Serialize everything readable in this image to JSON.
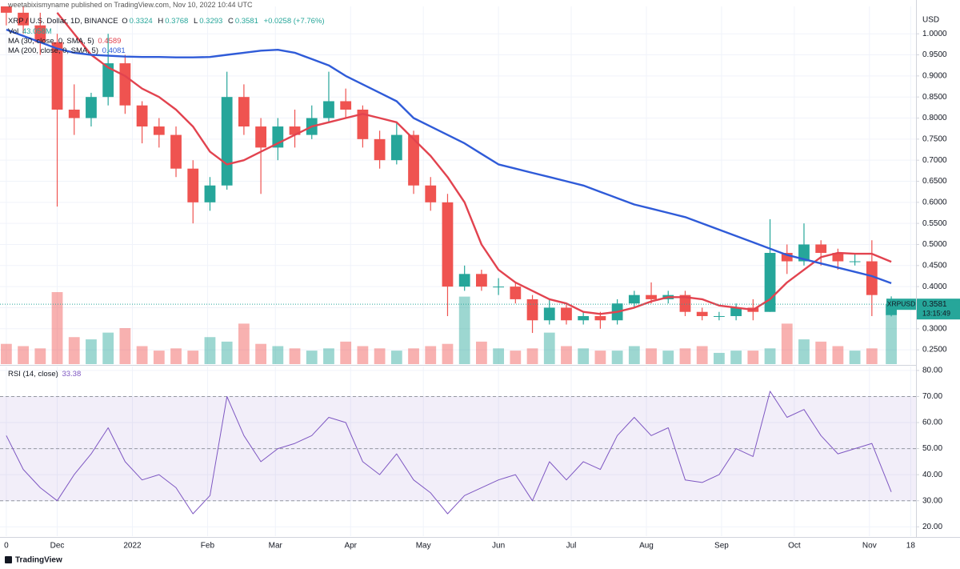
{
  "header": "weetabixismyname published on TradingView.com, Nov 10, 2022 10:44 UTC",
  "footer": "TradingView",
  "chart_data": [
    {
      "type": "candlestick",
      "title": "XRP / U.S. Dollar, 1D, BINANCE",
      "ohlc": [
        {
          "label": "O",
          "value": "0.3324"
        },
        {
          "label": "H",
          "value": "0.3768"
        },
        {
          "label": "L",
          "value": "0.3293"
        },
        {
          "label": "C",
          "value": "0.3581"
        }
      ],
      "change": "+0.0258 (+7.76%)",
      "volume_label": "Vol",
      "volume_value": "43.058M",
      "yaxis_label": "USD",
      "up_color": "#26a69a",
      "down_color": "#ef5350",
      "x": [
        0,
        7,
        14,
        21,
        28,
        35,
        42,
        49,
        56,
        63,
        70,
        77,
        84,
        91,
        98,
        105,
        112,
        119,
        126,
        133,
        140,
        147,
        154,
        161,
        168,
        175,
        182,
        189,
        196,
        203,
        210,
        217,
        224,
        231,
        238,
        245,
        252,
        259,
        266,
        273,
        280,
        287,
        294,
        301,
        308,
        315,
        322,
        329,
        336,
        343,
        350,
        357,
        365
      ],
      "open": [
        1.1,
        1.05,
        1.02,
        0.98,
        0.82,
        0.8,
        0.85,
        0.93,
        0.83,
        0.78,
        0.76,
        0.68,
        0.6,
        0.64,
        0.85,
        0.78,
        0.73,
        0.78,
        0.76,
        0.8,
        0.84,
        0.82,
        0.75,
        0.7,
        0.76,
        0.64,
        0.6,
        0.4,
        0.43,
        0.4,
        0.4,
        0.37,
        0.32,
        0.35,
        0.32,
        0.33,
        0.32,
        0.36,
        0.38,
        0.37,
        0.38,
        0.34,
        0.33,
        0.33,
        0.35,
        0.34,
        0.48,
        0.46,
        0.5,
        0.48,
        0.46,
        0.46,
        0.3324
      ],
      "high": [
        1.12,
        1.08,
        1.05,
        1.0,
        0.88,
        0.86,
        1.0,
        0.95,
        0.84,
        0.8,
        0.78,
        0.7,
        0.66,
        0.91,
        0.88,
        0.8,
        0.8,
        0.82,
        0.83,
        0.91,
        0.87,
        0.83,
        0.77,
        0.79,
        0.77,
        0.66,
        0.62,
        0.45,
        0.44,
        0.42,
        0.41,
        0.38,
        0.37,
        0.36,
        0.34,
        0.34,
        0.37,
        0.39,
        0.41,
        0.39,
        0.39,
        0.35,
        0.34,
        0.36,
        0.37,
        0.56,
        0.5,
        0.55,
        0.51,
        0.49,
        0.48,
        0.51,
        0.3768
      ],
      "low": [
        1.02,
        1.0,
        0.95,
        0.59,
        0.76,
        0.78,
        0.83,
        0.81,
        0.74,
        0.73,
        0.66,
        0.55,
        0.58,
        0.63,
        0.76,
        0.62,
        0.7,
        0.73,
        0.75,
        0.79,
        0.8,
        0.73,
        0.68,
        0.69,
        0.62,
        0.58,
        0.33,
        0.39,
        0.39,
        0.38,
        0.36,
        0.29,
        0.31,
        0.31,
        0.31,
        0.3,
        0.31,
        0.35,
        0.36,
        0.36,
        0.33,
        0.32,
        0.32,
        0.32,
        0.32,
        0.34,
        0.43,
        0.45,
        0.45,
        0.44,
        0.45,
        0.33,
        0.3293
      ],
      "close": [
        1.05,
        1.02,
        0.98,
        0.82,
        0.8,
        0.85,
        0.93,
        0.83,
        0.78,
        0.76,
        0.68,
        0.6,
        0.64,
        0.85,
        0.78,
        0.73,
        0.78,
        0.76,
        0.8,
        0.84,
        0.82,
        0.75,
        0.7,
        0.76,
        0.64,
        0.6,
        0.4,
        0.43,
        0.4,
        0.4,
        0.37,
        0.32,
        0.35,
        0.32,
        0.33,
        0.32,
        0.36,
        0.38,
        0.37,
        0.38,
        0.34,
        0.33,
        0.33,
        0.35,
        0.34,
        0.48,
        0.46,
        0.5,
        0.48,
        0.46,
        0.46,
        0.38,
        0.3581
      ],
      "volume": [
        45,
        40,
        35,
        160,
        60,
        55,
        70,
        80,
        40,
        30,
        35,
        30,
        60,
        50,
        90,
        45,
        40,
        35,
        30,
        35,
        50,
        40,
        35,
        30,
        35,
        40,
        45,
        150,
        50,
        35,
        30,
        35,
        70,
        40,
        35,
        30,
        30,
        40,
        35,
        30,
        35,
        40,
        25,
        30,
        30,
        35,
        90,
        55,
        50,
        40,
        30,
        35,
        110
      ],
      "series": [
        {
          "name": "MA (30, close, 0, SMA, 5)",
          "value_label": "0.4589",
          "color": "#e2434f",
          "values": [
            null,
            null,
            null,
            1.05,
            1.0,
            0.95,
            0.92,
            0.9,
            0.87,
            0.85,
            0.82,
            0.78,
            0.72,
            0.69,
            0.7,
            0.72,
            0.74,
            0.76,
            0.78,
            0.79,
            0.8,
            0.81,
            0.8,
            0.79,
            0.75,
            0.71,
            0.66,
            0.6,
            0.5,
            0.44,
            0.41,
            0.39,
            0.37,
            0.36,
            0.34,
            0.335,
            0.34,
            0.35,
            0.365,
            0.375,
            0.375,
            0.37,
            0.355,
            0.35,
            0.345,
            0.37,
            0.41,
            0.44,
            0.47,
            0.48,
            0.478,
            0.478,
            0.4589
          ]
        },
        {
          "name": "MA (200, close, 0, SMA, 5)",
          "value_label": "0.4081",
          "color": "#2f5bd8",
          "values": [
            1.01,
            0.995,
            0.98,
            0.965,
            0.955,
            0.95,
            0.948,
            0.946,
            0.945,
            0.945,
            0.944,
            0.944,
            0.945,
            0.95,
            0.955,
            0.96,
            0.962,
            0.955,
            0.94,
            0.925,
            0.9,
            0.88,
            0.86,
            0.84,
            0.8,
            0.78,
            0.76,
            0.74,
            0.715,
            0.69,
            0.68,
            0.67,
            0.66,
            0.65,
            0.64,
            0.625,
            0.61,
            0.595,
            0.585,
            0.575,
            0.565,
            0.55,
            0.535,
            0.52,
            0.505,
            0.49,
            0.475,
            0.465,
            0.455,
            0.445,
            0.435,
            0.425,
            0.4081
          ]
        }
      ],
      "last_price": {
        "symbol": "XRPUSD",
        "value": 0.3581,
        "label": "0.3581",
        "countdown": "13:15:49"
      },
      "xlim": [
        -2.6,
        375.2
      ],
      "ylim": [
        0.216,
        1.065
      ],
      "yticks": [
        {
          "value": 0.25,
          "label": "0.2500"
        },
        {
          "value": 0.3,
          "label": "0.3000"
        },
        {
          "value": 0.35,
          "label": "0.3500"
        },
        {
          "value": 0.4,
          "label": "0.4000"
        },
        {
          "value": 0.45,
          "label": "0.4500"
        },
        {
          "value": 0.5,
          "label": "0.5000"
        },
        {
          "value": 0.55,
          "label": "0.5500"
        },
        {
          "value": 0.6,
          "label": "0.6000"
        },
        {
          "value": 0.65,
          "label": "0.6500"
        },
        {
          "value": 0.7,
          "label": "0.7000"
        },
        {
          "value": 0.75,
          "label": "0.7500"
        },
        {
          "value": 0.8,
          "label": "0.8000"
        },
        {
          "value": 0.85,
          "label": "0.8500"
        },
        {
          "value": 0.9,
          "label": "0.9000"
        },
        {
          "value": 0.95,
          "label": "0.9500"
        },
        {
          "value": 1.0,
          "label": "1.0000"
        }
      ],
      "grid": true
    },
    {
      "type": "line",
      "title": "RSI (14, close)",
      "value_label": "33.38",
      "x": [
        0,
        7,
        14,
        21,
        28,
        35,
        42,
        49,
        56,
        63,
        70,
        77,
        84,
        91,
        98,
        105,
        112,
        119,
        126,
        133,
        140,
        147,
        154,
        161,
        168,
        175,
        182,
        189,
        196,
        203,
        210,
        217,
        224,
        231,
        238,
        245,
        252,
        259,
        266,
        273,
        280,
        287,
        294,
        301,
        308,
        315,
        322,
        329,
        336,
        343,
        350,
        357,
        365
      ],
      "series": [
        {
          "name": "RSI",
          "color": "#7e57c2",
          "values": [
            55,
            42,
            35,
            30,
            40,
            48,
            58,
            45,
            38,
            40,
            35,
            25,
            32,
            70,
            55,
            45,
            50,
            52,
            55,
            62,
            60,
            45,
            40,
            48,
            38,
            33,
            25,
            32,
            35,
            38,
            40,
            30,
            45,
            38,
            45,
            42,
            55,
            62,
            55,
            58,
            38,
            37,
            40,
            50,
            47,
            72,
            62,
            65,
            55,
            48,
            50,
            52,
            33.38
          ]
        }
      ],
      "band": [
        30,
        70
      ],
      "midline": 50,
      "band_color": "#7e57c2",
      "xlim": [
        -2.6,
        375.2
      ],
      "ylim": [
        16.4,
        81.5
      ],
      "yticks": [
        {
          "value": 20,
          "label": "20.00"
        },
        {
          "value": 30,
          "label": "30.00"
        },
        {
          "value": 40,
          "label": "40.00"
        },
        {
          "value": 50,
          "label": "50.00"
        },
        {
          "value": 60,
          "label": "60.00"
        },
        {
          "value": 70,
          "label": "70.00"
        },
        {
          "value": 80,
          "label": "80.00"
        }
      ],
      "xticks": [
        {
          "value": 0,
          "label": "0"
        },
        {
          "value": 21,
          "label": "Dec"
        },
        {
          "value": 52,
          "label": "2022"
        },
        {
          "value": 83,
          "label": "Feb"
        },
        {
          "value": 111,
          "label": "Mar"
        },
        {
          "value": 142,
          "label": "Apr"
        },
        {
          "value": 172,
          "label": "May"
        },
        {
          "value": 203,
          "label": "Jun"
        },
        {
          "value": 233,
          "label": "Jul"
        },
        {
          "value": 264,
          "label": "Aug"
        },
        {
          "value": 295,
          "label": "Sep"
        },
        {
          "value": 325,
          "label": "Oct"
        },
        {
          "value": 356,
          "label": "Nov"
        },
        {
          "value": 373,
          "label": "18"
        }
      ],
      "grid": true
    }
  ]
}
